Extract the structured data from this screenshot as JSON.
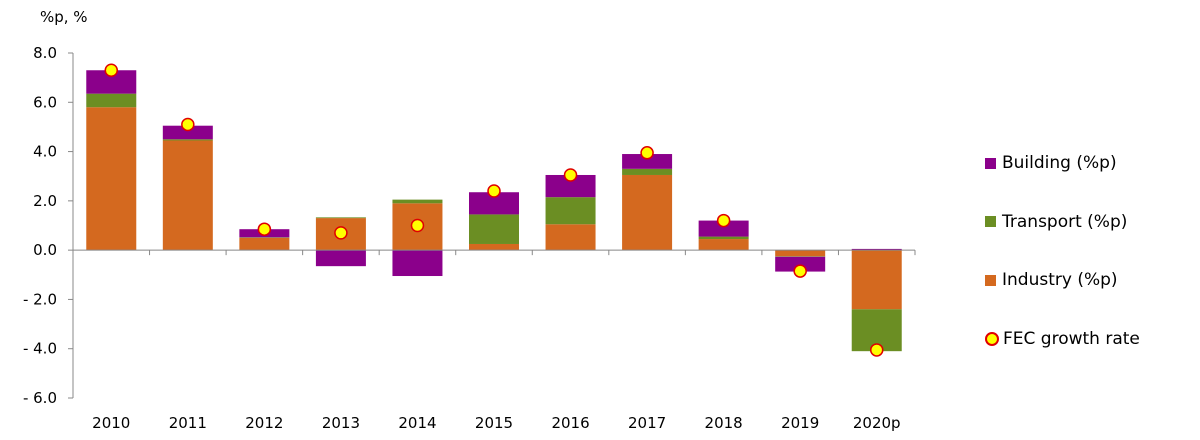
{
  "chart_data": {
    "type": "bar",
    "stacked": true,
    "unit_label": "%p, %",
    "categories": [
      "2010",
      "2011",
      "2012",
      "2013",
      "2014",
      "2015",
      "2016",
      "2017",
      "2018",
      "2019",
      "2020p"
    ],
    "series": [
      {
        "name": "Industry (%p)",
        "color": "#d4691f",
        "values": [
          5.8,
          4.45,
          0.5,
          1.3,
          1.9,
          0.25,
          1.05,
          3.05,
          0.45,
          -0.25,
          -2.4
        ]
      },
      {
        "name": "Transport (%p)",
        "color": "#6b8e23",
        "values": [
          0.55,
          0.05,
          0.02,
          0.03,
          0.15,
          1.2,
          1.1,
          0.25,
          0.1,
          -0.02,
          -1.7
        ]
      },
      {
        "name": "Building (%p)",
        "color": "#8b008b",
        "values": [
          0.95,
          0.55,
          0.33,
          -0.65,
          -1.05,
          0.9,
          0.9,
          0.6,
          0.65,
          -0.6,
          0.05
        ]
      }
    ],
    "line_series": {
      "name": "FEC growth rate",
      "marker_fill": "#ffff00",
      "marker_edge": "#e00000",
      "values": [
        7.3,
        5.1,
        0.85,
        0.7,
        1.0,
        2.4,
        3.05,
        3.95,
        1.2,
        -0.85,
        -4.05
      ]
    },
    "ylim": [
      -6,
      8
    ],
    "yticks": [
      "8.0",
      "6.0",
      "4.0",
      "2.0",
      "0.0",
      "- 2.0",
      "- 4.0",
      "- 6.0"
    ],
    "ytick_values": [
      8,
      6,
      4,
      2,
      0,
      -2,
      -4,
      -6
    ],
    "legend_position": "right",
    "grid": false
  }
}
